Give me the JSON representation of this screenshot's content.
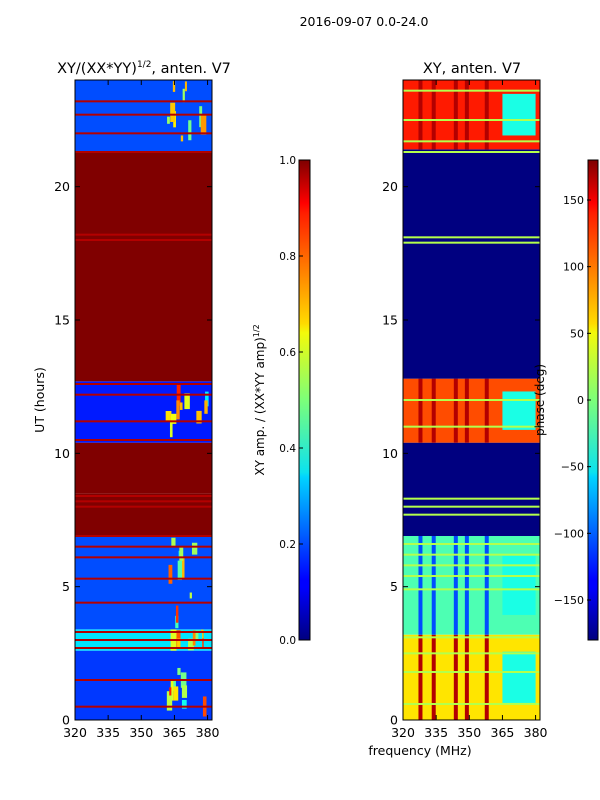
{
  "figure": {
    "suptitle": "2016-09-07 0.0-24.0",
    "shared_xlabel": "frequency (MHz)"
  },
  "chart_data": [
    {
      "type": "heatmap",
      "title": "XY/(XX*YY)",
      "title_exp": "1/2",
      "title_suffix": ", anten. V7",
      "xlabel": "",
      "ylabel": "UT (hours)",
      "xlim": [
        320,
        382
      ],
      "ylim": [
        0,
        24
      ],
      "xticks": [
        320,
        335,
        350,
        365,
        380
      ],
      "yticks": [
        0,
        5,
        10,
        15,
        20
      ],
      "colormap": "jet",
      "colorbar": {
        "label": "XY amp. / (XX*YY amp)",
        "label_exp": "1/2",
        "range": [
          0.0,
          1.0
        ],
        "ticks": [
          "0.0",
          "0.2",
          "0.4",
          "0.6",
          "0.8",
          "1.0"
        ]
      },
      "bands": [
        {
          "ut": [
            0.0,
            2.6
          ],
          "level": 0.18
        },
        {
          "ut": [
            2.6,
            3.4
          ],
          "level": 0.35
        },
        {
          "ut": [
            3.4,
            6.9
          ],
          "level": 0.2
        },
        {
          "ut": [
            6.9,
            8.5
          ],
          "level": 1.0
        },
        {
          "ut": [
            8.5,
            10.4
          ],
          "level": 1.0
        },
        {
          "ut": [
            10.4,
            12.7
          ],
          "level": 0.15
        },
        {
          "ut": [
            12.7,
            21.3
          ],
          "level": 1.0
        },
        {
          "ut": [
            21.3,
            24.0
          ],
          "level": 0.2
        }
      ],
      "lines": [
        0.5,
        1.5,
        2.7,
        3.0,
        3.3,
        4.4,
        5.3,
        6.1,
        6.5,
        6.9,
        8.0,
        8.2,
        8.4,
        10.5,
        11.2,
        12.2,
        12.6,
        18.0,
        18.2,
        21.3,
        22.0,
        22.7,
        23.2
      ]
    },
    {
      "type": "heatmap",
      "title": "XY, anten. V7",
      "xlabel": "frequency (MHz)",
      "ylabel": "",
      "xlim": [
        320,
        382
      ],
      "ylim": [
        0,
        24
      ],
      "xticks": [
        320,
        335,
        350,
        365,
        380
      ],
      "yticks": [
        0,
        5,
        10,
        15,
        20
      ],
      "colormap": "jet",
      "colorbar": {
        "label": "phase (deg)",
        "range": [
          -180,
          180
        ],
        "ticks": [
          "−150",
          "−100",
          "−50",
          "0",
          "50",
          "100",
          "150"
        ]
      },
      "bands": [
        {
          "ut": [
            0.0,
            3.2
          ],
          "level": 0.65
        },
        {
          "ut": [
            3.2,
            6.9
          ],
          "level": 0.45
        },
        {
          "ut": [
            6.9,
            10.4
          ],
          "level": 0.0
        },
        {
          "ut": [
            10.4,
            12.8
          ],
          "level": 0.8
        },
        {
          "ut": [
            12.8,
            21.4
          ],
          "level": 0.0
        },
        {
          "ut": [
            21.4,
            24.0
          ],
          "level": 0.85
        }
      ],
      "lines": [
        0.6,
        1.8,
        2.5,
        3.1,
        4.9,
        5.4,
        5.8,
        6.2,
        6.6,
        7.7,
        8.0,
        8.3,
        11.0,
        12.0,
        17.9,
        18.1,
        21.3,
        21.7,
        22.5,
        23.6
      ]
    }
  ]
}
